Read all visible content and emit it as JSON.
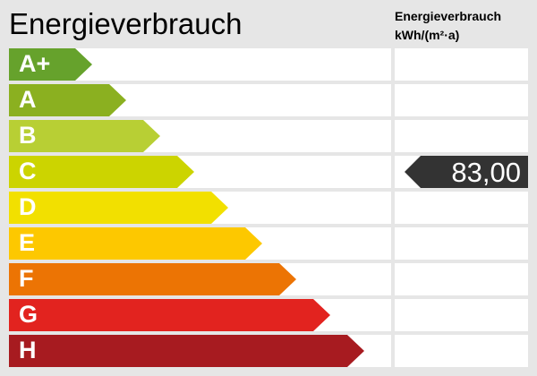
{
  "title": "Energieverbrauch",
  "unit_line1": "Energieverbrauch",
  "unit_line2": "kWh/(m²·a)",
  "classes": [
    {
      "label": "A+",
      "color": "#66a22c"
    },
    {
      "label": "A",
      "color": "#8bb020"
    },
    {
      "label": "B",
      "color": "#b8cf34"
    },
    {
      "label": "C",
      "color": "#ccd400"
    },
    {
      "label": "D",
      "color": "#f2e000"
    },
    {
      "label": "E",
      "color": "#fdc800"
    },
    {
      "label": "F",
      "color": "#ec7404"
    },
    {
      "label": "G",
      "color": "#e2231f"
    },
    {
      "label": "H",
      "color": "#a71b20"
    }
  ],
  "indicator": {
    "value": "83,00",
    "class": "C",
    "color": "#333333"
  }
}
